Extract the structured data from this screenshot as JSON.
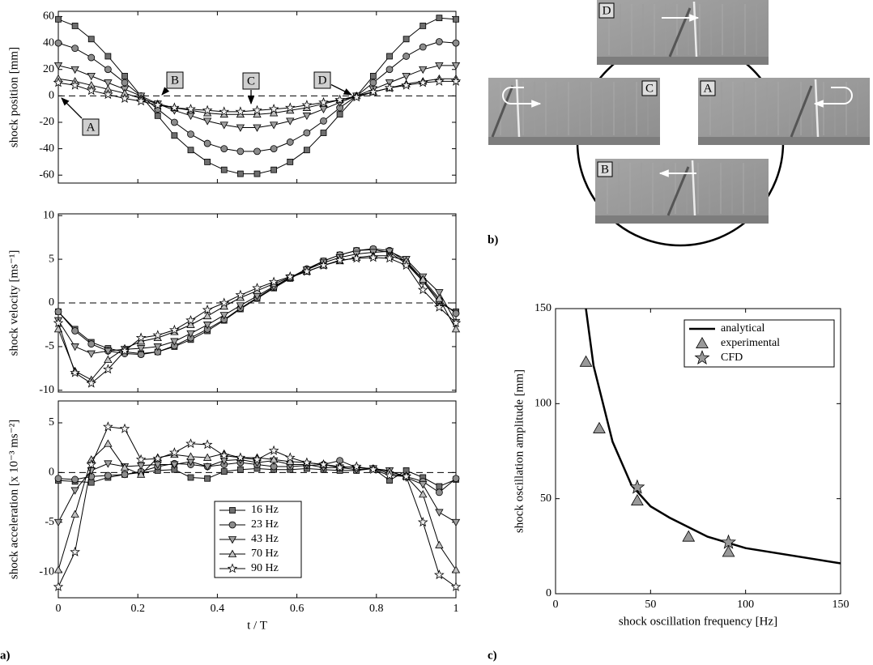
{
  "chart_data": [
    {
      "type": "line",
      "ylabel": "shock position [mm]",
      "x": [
        0,
        0.042,
        0.083,
        0.125,
        0.167,
        0.208,
        0.25,
        0.292,
        0.333,
        0.375,
        0.417,
        0.458,
        0.5,
        0.542,
        0.583,
        0.625,
        0.667,
        0.708,
        0.75,
        0.792,
        0.833,
        0.875,
        0.917,
        0.958,
        1
      ],
      "xlim": [
        0,
        1
      ],
      "ylim": [
        -66,
        64
      ],
      "yticks": [
        -60,
        -40,
        -20,
        0,
        20,
        40,
        60
      ],
      "zero_line": true,
      "annotations": [
        "A",
        "B",
        "C",
        "D"
      ],
      "series": [
        {
          "color": "#6e6e6e",
          "marker": "square",
          "values": [
            58,
            53,
            43,
            30,
            15,
            0,
            -15,
            -30,
            -41,
            -50,
            -56,
            -59,
            -59,
            -56,
            -50,
            -41,
            -28,
            -14,
            0,
            15,
            30,
            43,
            53,
            59,
            58
          ]
        },
        {
          "color": "#8c8c8c",
          "marker": "circle",
          "values": [
            40,
            36,
            29,
            20,
            10,
            0,
            -10,
            -20,
            -29,
            -36,
            -40,
            -42,
            -42,
            -40,
            -35,
            -28,
            -19,
            -9,
            0,
            10,
            20,
            30,
            37,
            41,
            40
          ]
        },
        {
          "color": "#a0a0a0",
          "marker": "triangle-down",
          "values": [
            23,
            20,
            15,
            10,
            5,
            0,
            -6,
            -11,
            -15,
            -19,
            -22,
            -24,
            -24,
            -22,
            -19,
            -15,
            -10,
            -5,
            0,
            5,
            10,
            15,
            20,
            23,
            23
          ]
        },
        {
          "color": "#c0c0c0",
          "marker": "triangle-up",
          "values": [
            13,
            11,
            8,
            5,
            2,
            -2,
            -6,
            -9,
            -11,
            -13,
            -14,
            -14,
            -14,
            -13,
            -11,
            -9,
            -6,
            -3,
            0,
            3,
            6,
            9,
            11,
            13,
            13
          ]
        },
        {
          "color": "#f0f0f0",
          "marker": "star",
          "values": [
            10,
            8,
            4,
            1,
            -2,
            -4,
            -7,
            -9,
            -10,
            -11,
            -12,
            -12,
            -11,
            -10,
            -9,
            -7,
            -5,
            -3,
            -1,
            3,
            6,
            8,
            10,
            11,
            11
          ]
        }
      ]
    },
    {
      "type": "line",
      "ylabel": "shock velocity [ms⁻¹]",
      "x": [
        0,
        0.042,
        0.083,
        0.125,
        0.167,
        0.208,
        0.25,
        0.292,
        0.333,
        0.375,
        0.417,
        0.458,
        0.5,
        0.542,
        0.583,
        0.625,
        0.667,
        0.708,
        0.75,
        0.792,
        0.833,
        0.875,
        0.917,
        0.958,
        1
      ],
      "xlim": [
        0,
        1
      ],
      "ylim": [
        -10.2,
        10.2
      ],
      "yticks": [
        -10,
        -5,
        0,
        5,
        10
      ],
      "zero_line": true,
      "series": [
        {
          "color": "#6e6e6e",
          "marker": "square",
          "values": [
            -1,
            -3,
            -4.5,
            -5.2,
            -5.6,
            -5.8,
            -5.6,
            -5,
            -4.2,
            -3.2,
            -2,
            -0.7,
            0.5,
            1.7,
            2.8,
            3.8,
            4.8,
            5.5,
            6,
            6.1,
            5.8,
            4.5,
            2.5,
            0,
            -1
          ]
        },
        {
          "color": "#8c8c8c",
          "marker": "circle",
          "values": [
            -1,
            -3.2,
            -4.7,
            -5.5,
            -5.8,
            -5.9,
            -5.6,
            -4.9,
            -4,
            -3,
            -1.9,
            -0.6,
            0.6,
            1.8,
            2.9,
            3.9,
            4.8,
            5.5,
            6,
            6.2,
            6,
            4.7,
            2.5,
            0.3,
            -1.2
          ]
        },
        {
          "color": "#a0a0a0",
          "marker": "triangle-down",
          "values": [
            -2,
            -5,
            -5.8,
            -5.5,
            -5.3,
            -5.2,
            -5,
            -4.4,
            -3.5,
            -2.5,
            -1.4,
            -0.3,
            0.8,
            1.9,
            2.9,
            3.8,
            4.6,
            5.2,
            5.6,
            5.8,
            5.9,
            5,
            3,
            1.2,
            -2.2
          ]
        },
        {
          "color": "#c0c0c0",
          "marker": "triangle-up",
          "values": [
            -3,
            -7.8,
            -8.8,
            -6.5,
            -5.2,
            -4.4,
            -4,
            -3.3,
            -2.5,
            -1.5,
            -0.4,
            0.6,
            1.4,
            2.2,
            2.9,
            3.6,
            4.3,
            4.8,
            5.2,
            5.4,
            5.4,
            4.8,
            2.7,
            0.5,
            -3
          ]
        },
        {
          "color": "#f0f0f0",
          "marker": "star",
          "values": [
            -2.3,
            -8,
            -9.2,
            -7.6,
            -5.5,
            -4,
            -3.7,
            -3.1,
            -2,
            -0.8,
            0,
            0.9,
            1.7,
            2.4,
            3,
            3.6,
            4.3,
            4.9,
            5.1,
            5.2,
            5.1,
            4.3,
            1.5,
            -0.5,
            -2.3
          ]
        }
      ]
    },
    {
      "type": "line",
      "ylabel": "shock acceleration [x 10⁻³ ms⁻²]",
      "xlabel": "t / T",
      "panel_label": "a)",
      "x": [
        0,
        0.042,
        0.083,
        0.125,
        0.167,
        0.208,
        0.25,
        0.292,
        0.333,
        0.375,
        0.417,
        0.458,
        0.5,
        0.542,
        0.583,
        0.625,
        0.667,
        0.708,
        0.75,
        0.792,
        0.833,
        0.875,
        0.917,
        0.958,
        1
      ],
      "xlim": [
        0,
        1
      ],
      "ylim": [
        -12.6,
        7.2
      ],
      "xticks": [
        0,
        0.2,
        0.4,
        0.6,
        0.8,
        1
      ],
      "yticks": [
        -10,
        -5,
        0,
        5
      ],
      "zero_line": true,
      "legend": "lower center",
      "series": [
        {
          "name": "16 Hz",
          "color": "#6e6e6e",
          "marker": "square",
          "values": [
            -0.8,
            -0.9,
            -1,
            -0.5,
            -0.2,
            0,
            0.2,
            0.3,
            -0.5,
            -0.6,
            0.1,
            0.3,
            0.4,
            0.3,
            0.3,
            0.4,
            0.3,
            0.2,
            0.2,
            0.4,
            -0.8,
            0.2,
            -0.5,
            -1.4,
            -0.7
          ]
        },
        {
          "name": "23 Hz",
          "color": "#8c8c8c",
          "marker": "circle",
          "values": [
            -0.6,
            -0.7,
            -0.4,
            -0.3,
            -0.2,
            0.1,
            0.6,
            0.9,
            0.8,
            0.6,
            0.8,
            1,
            0.8,
            0.6,
            0.6,
            0.7,
            0.8,
            1.2,
            0.5,
            0.4,
            -0.1,
            -0.4,
            -0.9,
            -2,
            -0.6
          ]
        },
        {
          "name": "43 Hz",
          "color": "#a0a0a0",
          "marker": "triangle-down",
          "values": [
            -5,
            -1.8,
            0.2,
            0.9,
            0.6,
            0.7,
            0.8,
            0.8,
            1.1,
            0.6,
            1.2,
            1.3,
            1,
            1.2,
            0.8,
            0.8,
            0.5,
            0.5,
            0.3,
            0.4,
            0.2,
            -0.5,
            -1.2,
            -4,
            -5
          ]
        },
        {
          "name": "70 Hz",
          "color": "#c0c0c0",
          "marker": "triangle-up",
          "values": [
            -9.8,
            -4.2,
            1.3,
            2.9,
            0.5,
            -0.2,
            1.5,
            1.8,
            1.6,
            1.5,
            1.9,
            1.5,
            1.5,
            1.3,
            1.1,
            1,
            0.8,
            0.6,
            0.5,
            0.4,
            0.1,
            -0.4,
            -2.2,
            -7.3,
            -9.8
          ]
        },
        {
          "name": "90 Hz",
          "color": "#f0f0f0",
          "marker": "star",
          "values": [
            -11.5,
            -8,
            0.8,
            4.6,
            4.4,
            1.3,
            1.4,
            2,
            2.9,
            2.8,
            1.7,
            1.5,
            1.3,
            2.2,
            1.5,
            1,
            0.8,
            0.5,
            0.6,
            0.3,
            -0.3,
            -0.4,
            -5,
            -10.3,
            -11.5
          ]
        }
      ]
    },
    {
      "type": "line",
      "xlabel": "shock oscillation frequency [Hz]",
      "ylabel": "shock oscillation amplitude [mm]",
      "panel_label": "c)",
      "xlim": [
        0,
        150
      ],
      "ylim": [
        0,
        150
      ],
      "xticks": [
        0,
        50,
        100,
        150
      ],
      "yticks": [
        0,
        50,
        100,
        150
      ],
      "legend": "upper right",
      "series": [
        {
          "name": "analytical",
          "color": "#000000",
          "marker": "none",
          "x": [
            16,
            20,
            30,
            40,
            50,
            60,
            80,
            100,
            150
          ],
          "values": [
            150,
            120,
            80,
            57,
            46,
            40,
            30,
            24,
            16
          ]
        },
        {
          "name": "experimental",
          "color": "#999999",
          "marker": "triangle-up",
          "x": [
            16,
            23,
            43,
            70,
            91
          ],
          "values": [
            122,
            87,
            49,
            30,
            22
          ]
        },
        {
          "name": "CFD",
          "color": "#999999",
          "marker": "star",
          "x": [
            43,
            91
          ],
          "values": [
            56,
            27
          ]
        }
      ]
    }
  ],
  "figure_b": {
    "label": "b)",
    "frames": [
      "D",
      "C",
      "A",
      "B"
    ]
  }
}
